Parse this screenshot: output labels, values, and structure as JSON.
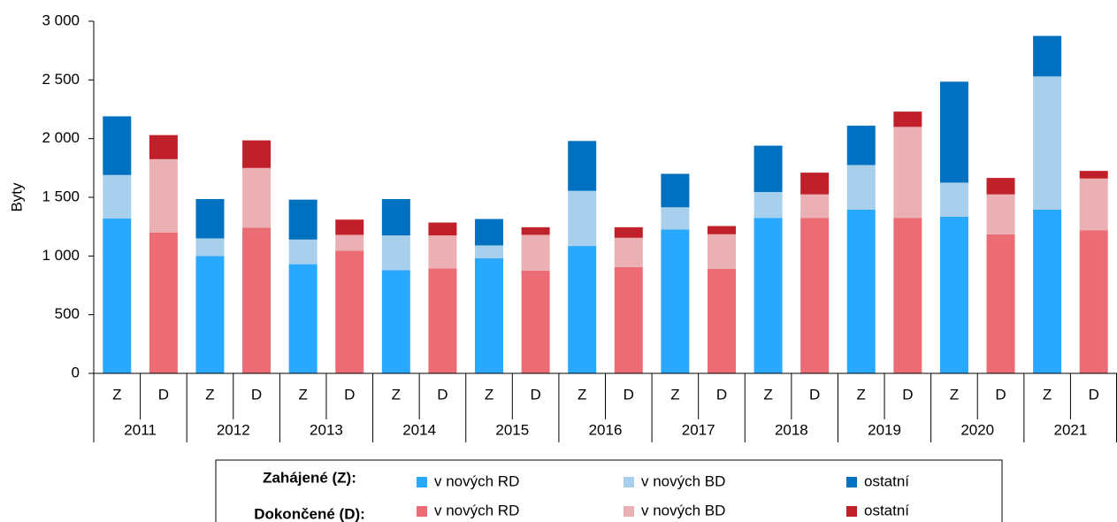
{
  "chart_data": {
    "type": "stacked_bar",
    "ylabel": "Byty",
    "categories": [
      "Z",
      "D",
      "Z",
      "D",
      "Z",
      "D",
      "Z",
      "D",
      "Z",
      "D",
      "Z",
      "D",
      "Z",
      "D",
      "Z",
      "D",
      "Z",
      "D",
      "Z",
      "D",
      "Z",
      "D"
    ],
    "groups": [
      "2011",
      "2012",
      "2013",
      "2014",
      "2015",
      "2016",
      "2017",
      "2018",
      "2019",
      "2020",
      "2021"
    ],
    "legend_titles": [
      "Zahájené (Z):",
      "Dokončené (D):"
    ],
    "series": [
      {
        "name": "v nových RD",
        "color": "#29a8ff",
        "values": [
          1320,
          null,
          1000,
          null,
          930,
          null,
          880,
          null,
          980,
          null,
          1085,
          null,
          1225,
          null,
          1325,
          null,
          1395,
          null,
          1335,
          null,
          1395,
          null
        ]
      },
      {
        "name": "v nových BD",
        "color": "#a8cfeb",
        "values": [
          370,
          null,
          150,
          null,
          210,
          null,
          295,
          null,
          110,
          null,
          470,
          null,
          190,
          null,
          220,
          null,
          380,
          null,
          290,
          null,
          1135,
          null
        ]
      },
      {
        "name": "ostatní",
        "color": "#0070c0",
        "values": [
          500,
          null,
          335,
          null,
          340,
          null,
          310,
          null,
          225,
          null,
          425,
          null,
          285,
          null,
          395,
          null,
          335,
          null,
          860,
          null,
          345,
          null
        ]
      },
      {
        "name": "v nových RD",
        "color": "#eb6c74",
        "values": [
          null,
          1200,
          null,
          1240,
          null,
          1045,
          null,
          895,
          null,
          875,
          null,
          905,
          null,
          890,
          null,
          1325,
          null,
          1325,
          null,
          1185,
          null,
          1220
        ]
      },
      {
        "name": "v nových BD",
        "color": "#ebb0b4",
        "values": [
          null,
          625,
          null,
          510,
          null,
          135,
          null,
          280,
          null,
          305,
          null,
          250,
          null,
          295,
          null,
          200,
          null,
          775,
          null,
          340,
          null,
          440
        ]
      },
      {
        "name": "ostatní",
        "color": "#c0202a",
        "values": [
          null,
          205,
          null,
          235,
          null,
          130,
          null,
          110,
          null,
          65,
          null,
          90,
          null,
          70,
          null,
          185,
          null,
          130,
          null,
          140,
          null,
          65
        ]
      }
    ],
    "ylim": [
      0,
      3000
    ],
    "yticks": [
      0,
      500,
      {
        "value": 1000,
        "label": "1 000"
      },
      {
        "value": 1500,
        "label": "1 500"
      },
      {
        "value": 2000,
        "label": "2 000"
      },
      {
        "value": 2500,
        "label": "2 500"
      },
      {
        "value": 3000,
        "label": "3 000"
      }
    ]
  }
}
